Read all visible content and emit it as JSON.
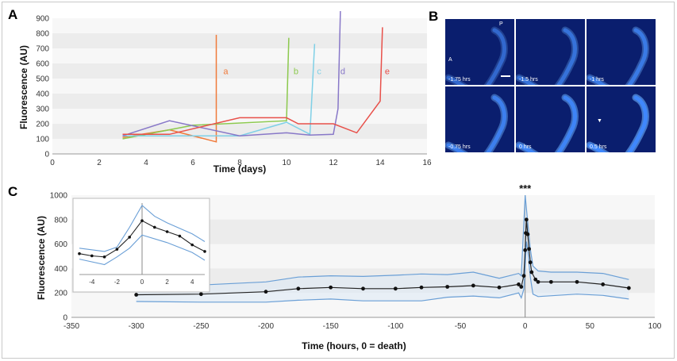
{
  "panels": {
    "a": "A",
    "b": "B",
    "c": "C"
  },
  "chart_data": [
    {
      "panel": "A",
      "type": "line",
      "xlabel": "Time (days)",
      "ylabel": "Fluorescence (AU)",
      "xlim": [
        0,
        16
      ],
      "ylim": [
        0,
        900
      ],
      "xticks": [
        0,
        2,
        4,
        6,
        8,
        10,
        12,
        14,
        16
      ],
      "yticks": [
        0,
        100,
        200,
        300,
        400,
        500,
        600,
        700,
        800,
        900
      ],
      "grid": "horizontal bands",
      "series": [
        {
          "name": "a",
          "color": "#f07a3a",
          "label_pos": [
            7.3,
            530
          ],
          "points": [
            [
              3,
              110
            ],
            [
              5,
              160
            ],
            [
              7,
              80
            ],
            [
              7,
              790
            ]
          ]
        },
        {
          "name": "b",
          "color": "#8cc94e",
          "label_pos": [
            10.3,
            530
          ],
          "points": [
            [
              3,
              100
            ],
            [
              6,
              190
            ],
            [
              10,
              220
            ],
            [
              10.1,
              770
            ]
          ]
        },
        {
          "name": "c",
          "color": "#7fd0e6",
          "label_pos": [
            11.3,
            530
          ],
          "points": [
            [
              3,
              120
            ],
            [
              8,
              120
            ],
            [
              10,
              210
            ],
            [
              11,
              130
            ],
            [
              11.2,
              730
            ]
          ]
        },
        {
          "name": "d",
          "color": "#8878c8",
          "label_pos": [
            12.3,
            530
          ],
          "points": [
            [
              3,
              120
            ],
            [
              5,
              220
            ],
            [
              8,
              120
            ],
            [
              10,
              140
            ],
            [
              11,
              125
            ],
            [
              12,
              130
            ],
            [
              12.2,
              300
            ],
            [
              12.3,
              950
            ]
          ]
        },
        {
          "name": "e",
          "color": "#e8504a",
          "label_pos": [
            14.2,
            530
          ],
          "points": [
            [
              3,
              130
            ],
            [
              5,
              130
            ],
            [
              8,
              240
            ],
            [
              10,
              240
            ],
            [
              10.5,
              200
            ],
            [
              12,
              200
            ],
            [
              13,
              140
            ],
            [
              14,
              350
            ],
            [
              14.1,
              840
            ]
          ]
        }
      ]
    },
    {
      "panel": "C",
      "type": "line",
      "xlabel": "Time (hours, 0 = death)",
      "ylabel": "Fluorescence (AU)",
      "xlim": [
        -350,
        100
      ],
      "ylim": [
        0,
        1000
      ],
      "xticks": [
        -350,
        -300,
        -250,
        -200,
        -150,
        -100,
        -50,
        0,
        50,
        100
      ],
      "yticks": [
        0,
        200,
        400,
        600,
        800,
        1000
      ],
      "grid": "horizontal bands",
      "annotation": "***",
      "mean": [
        [
          -300,
          185
        ],
        [
          -250,
          190
        ],
        [
          -200,
          210
        ],
        [
          -175,
          235
        ],
        [
          -150,
          245
        ],
        [
          -125,
          235
        ],
        [
          -100,
          235
        ],
        [
          -80,
          245
        ],
        [
          -60,
          250
        ],
        [
          -40,
          260
        ],
        [
          -20,
          245
        ],
        [
          -5,
          270
        ],
        [
          -3,
          250
        ],
        [
          -1,
          340
        ],
        [
          0,
          550
        ],
        [
          0.5,
          690
        ],
        [
          1,
          800
        ],
        [
          2,
          680
        ],
        [
          3,
          560
        ],
        [
          4,
          450
        ],
        [
          5,
          370
        ],
        [
          8,
          310
        ],
        [
          10,
          290
        ],
        [
          20,
          290
        ],
        [
          40,
          290
        ],
        [
          60,
          270
        ],
        [
          80,
          240
        ]
      ],
      "upper": [
        [
          -300,
          250
        ],
        [
          -250,
          265
        ],
        [
          -200,
          290
        ],
        [
          -175,
          330
        ],
        [
          -150,
          340
        ],
        [
          -125,
          335
        ],
        [
          -100,
          345
        ],
        [
          -80,
          355
        ],
        [
          -60,
          350
        ],
        [
          -40,
          370
        ],
        [
          -20,
          320
        ],
        [
          -5,
          360
        ],
        [
          -3,
          340
        ],
        [
          0,
          1000
        ],
        [
          2,
          780
        ],
        [
          4,
          560
        ],
        [
          6,
          420
        ],
        [
          10,
          380
        ],
        [
          20,
          370
        ],
        [
          40,
          370
        ],
        [
          60,
          360
        ],
        [
          80,
          310
        ]
      ],
      "lower": [
        [
          -300,
          130
        ],
        [
          -250,
          125
        ],
        [
          -200,
          125
        ],
        [
          -175,
          140
        ],
        [
          -150,
          150
        ],
        [
          -125,
          135
        ],
        [
          -100,
          135
        ],
        [
          -80,
          135
        ],
        [
          -60,
          165
        ],
        [
          -40,
          175
        ],
        [
          -20,
          160
        ],
        [
          -5,
          200
        ],
        [
          -3,
          160
        ],
        [
          -1,
          230
        ],
        [
          0,
          400
        ],
        [
          1,
          620
        ],
        [
          2,
          560
        ],
        [
          3,
          430
        ],
        [
          4,
          330
        ],
        [
          5,
          260
        ],
        [
          6,
          190
        ],
        [
          10,
          170
        ],
        [
          40,
          190
        ],
        [
          60,
          180
        ],
        [
          80,
          150
        ]
      ],
      "inset": {
        "xlim": [
          -5,
          5
        ],
        "ylim": [
          350,
          1000
        ],
        "xticks": [
          -4,
          -2,
          0,
          2,
          4
        ],
        "mean": [
          [
            -5,
            540
          ],
          [
            -4,
            520
          ],
          [
            -3,
            510
          ],
          [
            -2,
            580
          ],
          [
            -1,
            690
          ],
          [
            0,
            840
          ],
          [
            1,
            780
          ],
          [
            2,
            740
          ],
          [
            3,
            700
          ],
          [
            4,
            620
          ],
          [
            5,
            560
          ]
        ],
        "upper": [
          [
            -5,
            590
          ],
          [
            -3,
            560
          ],
          [
            -2,
            600
          ],
          [
            -1,
            780
          ],
          [
            0,
            980
          ],
          [
            1,
            880
          ],
          [
            2,
            820
          ],
          [
            4,
            720
          ],
          [
            5,
            650
          ]
        ],
        "lower": [
          [
            -5,
            490
          ],
          [
            -3,
            440
          ],
          [
            -2,
            510
          ],
          [
            -1,
            590
          ],
          [
            0,
            710
          ],
          [
            2,
            640
          ],
          [
            4,
            550
          ],
          [
            5,
            480
          ]
        ]
      }
    }
  ],
  "micrographs": {
    "orientation": {
      "anterior": "A",
      "posterior": "P"
    },
    "frames": [
      {
        "time": "-1.75 hrs"
      },
      {
        "time": "-1.5 hrs"
      },
      {
        "time": "-1 hrs"
      },
      {
        "time": "-0.75 hrs"
      },
      {
        "time": "0 hrs"
      },
      {
        "time": "0.5 hrs"
      }
    ],
    "colors": {
      "background": "#0a1e6e",
      "worm": "#3f88ff",
      "glow": "#6ab0ff"
    }
  }
}
